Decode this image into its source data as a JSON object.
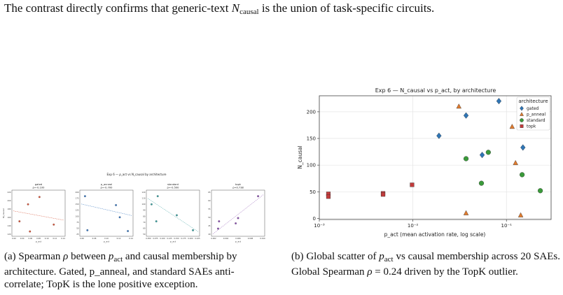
{
  "text": {
    "top_prefix": "The contrast directly confirms that generic-text ",
    "top_n": "N",
    "top_sub": "causal",
    "top_suffix": " is the union of task-specific circuits."
  },
  "captions": {
    "a_prefix": "(a) Spearman ",
    "a_rho": "ρ",
    "a_mid": " between ",
    "a_p": "p",
    "a_psub": "act",
    "a_line2_prefix": " and causal membership",
    "a_rest": "by architecture. Gated, p_anneal, and standard SAEs anti-correlate; TopK is the lone positive exception.",
    "b_prefix": "(b) Global scatter of ",
    "b_p": "p",
    "b_psub": "act",
    "b_mid": " vs causal membership across 20 SAEs. Global Spearman ",
    "b_rho": "ρ",
    "b_eq": " = 0.24 driven by the TopK outlier."
  },
  "chart_data": [
    {
      "type": "scatter",
      "title": "Exp 6 — ρ_act vs N_causal by architecture",
      "panels": [
        {
          "name": "gated",
          "rho": "ρ=-0.100",
          "color": "#d6553a",
          "xticks": [
            "0.02",
            "0.04",
            "0.06",
            "0.08",
            "0.10",
            "0.12",
            "0.14"
          ],
          "yticks": [
            "120",
            "140",
            "160",
            "180",
            "200",
            "220"
          ],
          "ylabel": "N_causal",
          "xlabel": "p_act"
        },
        {
          "name": "p_anneal",
          "rho": "ρ=-0.700",
          "color": "#3a78c0",
          "xticks": [
            "0.06",
            "0.08",
            "0.10",
            "0.12",
            "0.14"
          ],
          "yticks": [
            "25",
            "50",
            "75",
            "100",
            "125",
            "150",
            "175",
            "200"
          ],
          "xlabel": "p_act"
        },
        {
          "name": "standard",
          "rho": "ρ=-0.500",
          "color": "#3aa0a0",
          "xticks": [
            "0.050",
            "0.075",
            "0.100",
            "0.125",
            "0.150",
            "0.175",
            "0.200",
            "0.225"
          ],
          "yticks": [
            "50",
            "60",
            "70",
            "80",
            "90",
            "100",
            "110",
            "120"
          ],
          "xlabel": "p_act"
        },
        {
          "name": "topk",
          "rho": "ρ=0.738",
          "color": "#8a4fb0",
          "xticks": [
            "0.002",
            "0.004",
            "0.006",
            "0.008",
            "0.010"
          ],
          "yticks": [
            "40",
            "45",
            "50",
            "55",
            "60",
            "65"
          ],
          "xlabel": "p_act"
        }
      ]
    },
    {
      "type": "scatter",
      "title": "Exp 6 — N_causal vs p_act, by architecture",
      "xlabel": "p_act  (mean activation rate, log scale)",
      "ylabel": "N_causal",
      "xscale": "log",
      "xlim": [
        0.001,
        0.3
      ],
      "ylim": [
        -2,
        230
      ],
      "xticks": [
        0.001,
        0.01,
        0.1
      ],
      "xtick_labels": [
        "10⁻³",
        "10⁻²",
        "10⁻¹"
      ],
      "yticks": [
        0,
        50,
        100,
        150,
        200
      ],
      "grid": true,
      "legend": {
        "title": "architecture",
        "placement": "top-right"
      },
      "series": [
        {
          "name": "gated",
          "marker": "diamond",
          "color": "#2f75b5",
          "points": [
            [
              0.019,
              155
            ],
            [
              0.037,
              193
            ],
            [
              0.055,
              119
            ],
            [
              0.083,
              220
            ],
            [
              0.15,
              133
            ]
          ]
        },
        {
          "name": "p_anneal",
          "marker": "triangle",
          "color": "#e07b2e",
          "points": [
            [
              0.031,
              210
            ],
            [
              0.037,
              10
            ],
            [
              0.115,
              172
            ],
            [
              0.125,
              104
            ],
            [
              0.142,
              6
            ]
          ]
        },
        {
          "name": "standard",
          "marker": "circle",
          "color": "#3a9a3a",
          "points": [
            [
              0.037,
              112
            ],
            [
              0.054,
              66
            ],
            [
              0.064,
              124
            ],
            [
              0.147,
              82
            ],
            [
              0.23,
              52
            ]
          ]
        },
        {
          "name": "topk",
          "marker": "square",
          "color": "#c23b3b",
          "points": [
            [
              0.00125,
              46
            ],
            [
              0.00125,
              41
            ],
            [
              0.0048,
              47
            ],
            [
              0.0048,
              45
            ],
            [
              0.0098,
              63
            ]
          ]
        }
      ]
    }
  ]
}
